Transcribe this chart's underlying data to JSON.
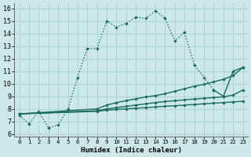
{
  "xlabel": "Humidex (Indice chaleur)",
  "bg_color": "#cce8e8",
  "grid_color": "#aacfcf",
  "line_color": "#1a6b5a",
  "xlim": [
    -0.5,
    23.5
  ],
  "ylim": [
    5.8,
    16.4
  ],
  "xticks": [
    0,
    1,
    2,
    3,
    4,
    5,
    6,
    7,
    8,
    9,
    10,
    11,
    12,
    13,
    14,
    15,
    16,
    17,
    18,
    19,
    20,
    21,
    22,
    23
  ],
  "yticks": [
    6,
    7,
    8,
    9,
    10,
    11,
    12,
    13,
    14,
    15,
    16
  ],
  "series": [
    {
      "x": [
        0,
        1,
        2,
        3,
        4,
        5,
        6,
        7,
        8,
        9,
        10,
        11,
        12,
        13,
        14,
        15,
        16,
        17,
        18,
        19,
        20
      ],
      "y": [
        7.5,
        6.8,
        7.8,
        6.5,
        6.7,
        8.0,
        10.5,
        12.8,
        12.8,
        15.0,
        14.5,
        14.8,
        15.3,
        15.2,
        15.8,
        15.2,
        13.4,
        14.1,
        11.5,
        10.5,
        9.5
      ],
      "ls": ":"
    },
    {
      "x": [
        0,
        8,
        9,
        10,
        11,
        12,
        13,
        14,
        15,
        16,
        17,
        18,
        19,
        20,
        21,
        22,
        23
      ],
      "y": [
        7.6,
        8.0,
        8.3,
        8.5,
        8.65,
        8.8,
        8.95,
        9.05,
        9.2,
        9.4,
        9.6,
        9.8,
        9.95,
        10.15,
        10.35,
        10.65,
        11.3
      ],
      "ls": "-"
    },
    {
      "x": [
        0,
        8,
        9,
        10,
        11,
        12,
        13,
        14,
        15,
        16,
        17,
        18,
        19,
        20,
        21,
        22,
        23
      ],
      "y": [
        7.6,
        7.85,
        8.0,
        8.1,
        8.2,
        8.3,
        8.4,
        8.5,
        8.58,
        8.65,
        8.72,
        8.78,
        8.84,
        8.9,
        8.96,
        9.1,
        9.5
      ],
      "ls": "-"
    },
    {
      "x": [
        0,
        8,
        9,
        10,
        11,
        12,
        13,
        14,
        15,
        16,
        17,
        18,
        19,
        20,
        21,
        22,
        23
      ],
      "y": [
        7.6,
        7.8,
        7.9,
        7.95,
        8.0,
        8.05,
        8.1,
        8.15,
        8.2,
        8.25,
        8.3,
        8.35,
        8.4,
        8.45,
        8.5,
        8.55,
        8.6
      ],
      "ls": "-"
    },
    {
      "x": [
        20,
        21,
        22,
        23
      ],
      "y": [
        9.5,
        9.0,
        11.0,
        11.3
      ],
      "ls": "-"
    }
  ]
}
